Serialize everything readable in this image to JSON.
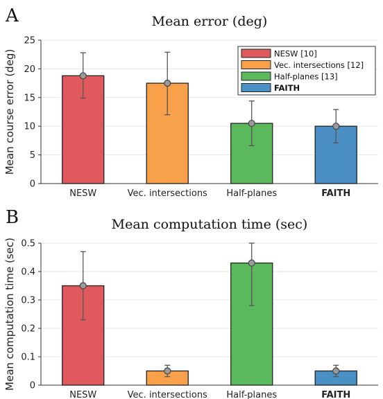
{
  "chart_data": [
    {
      "panel": "A",
      "type": "bar",
      "title": "Mean error (deg)",
      "ylabel": "Mean course error (deg)",
      "ylim": [
        0,
        25
      ],
      "yticks": [
        "0",
        "5",
        "10",
        "15",
        "20",
        "25"
      ],
      "categories": [
        "NESW",
        "Vec. intersections",
        "Half-planes",
        "FAITH"
      ],
      "bold_categories": [
        "FAITH"
      ],
      "values": [
        18.8,
        17.5,
        10.5,
        10.0
      ],
      "errors": [
        [
          14.9,
          22.8
        ],
        [
          12.0,
          22.9
        ],
        [
          6.6,
          14.4
        ],
        [
          7.1,
          12.9
        ]
      ],
      "colors": [
        "#e0595c",
        "#f9a04a",
        "#5cb85c",
        "#4a90c4"
      ],
      "legend": {
        "placement": "top-right",
        "entries": [
          "NESW [10]",
          "Vec. intersections [12]",
          "Half-planes [13]",
          "FAITH"
        ],
        "bold_entries": [
          "FAITH"
        ]
      },
      "grid": true
    },
    {
      "panel": "B",
      "type": "bar",
      "title": "Mean computation time (sec)",
      "ylabel": "Mean computation time (sec)",
      "ylim": [
        0,
        0.5
      ],
      "yticks": [
        "0",
        "0.1",
        "0.2",
        "0.3",
        "0.4",
        "0.5"
      ],
      "categories": [
        "NESW",
        "Vec. intersections",
        "Half-planes",
        "FAITH"
      ],
      "bold_categories": [
        "FAITH"
      ],
      "values": [
        0.35,
        0.05,
        0.43,
        0.05
      ],
      "errors": [
        [
          0.23,
          0.47
        ],
        [
          0.03,
          0.07
        ],
        [
          0.28,
          0.5
        ],
        [
          0.03,
          0.07
        ]
      ],
      "colors": [
        "#e0595c",
        "#f9a04a",
        "#5cb85c",
        "#4a90c4"
      ],
      "grid": true
    }
  ]
}
